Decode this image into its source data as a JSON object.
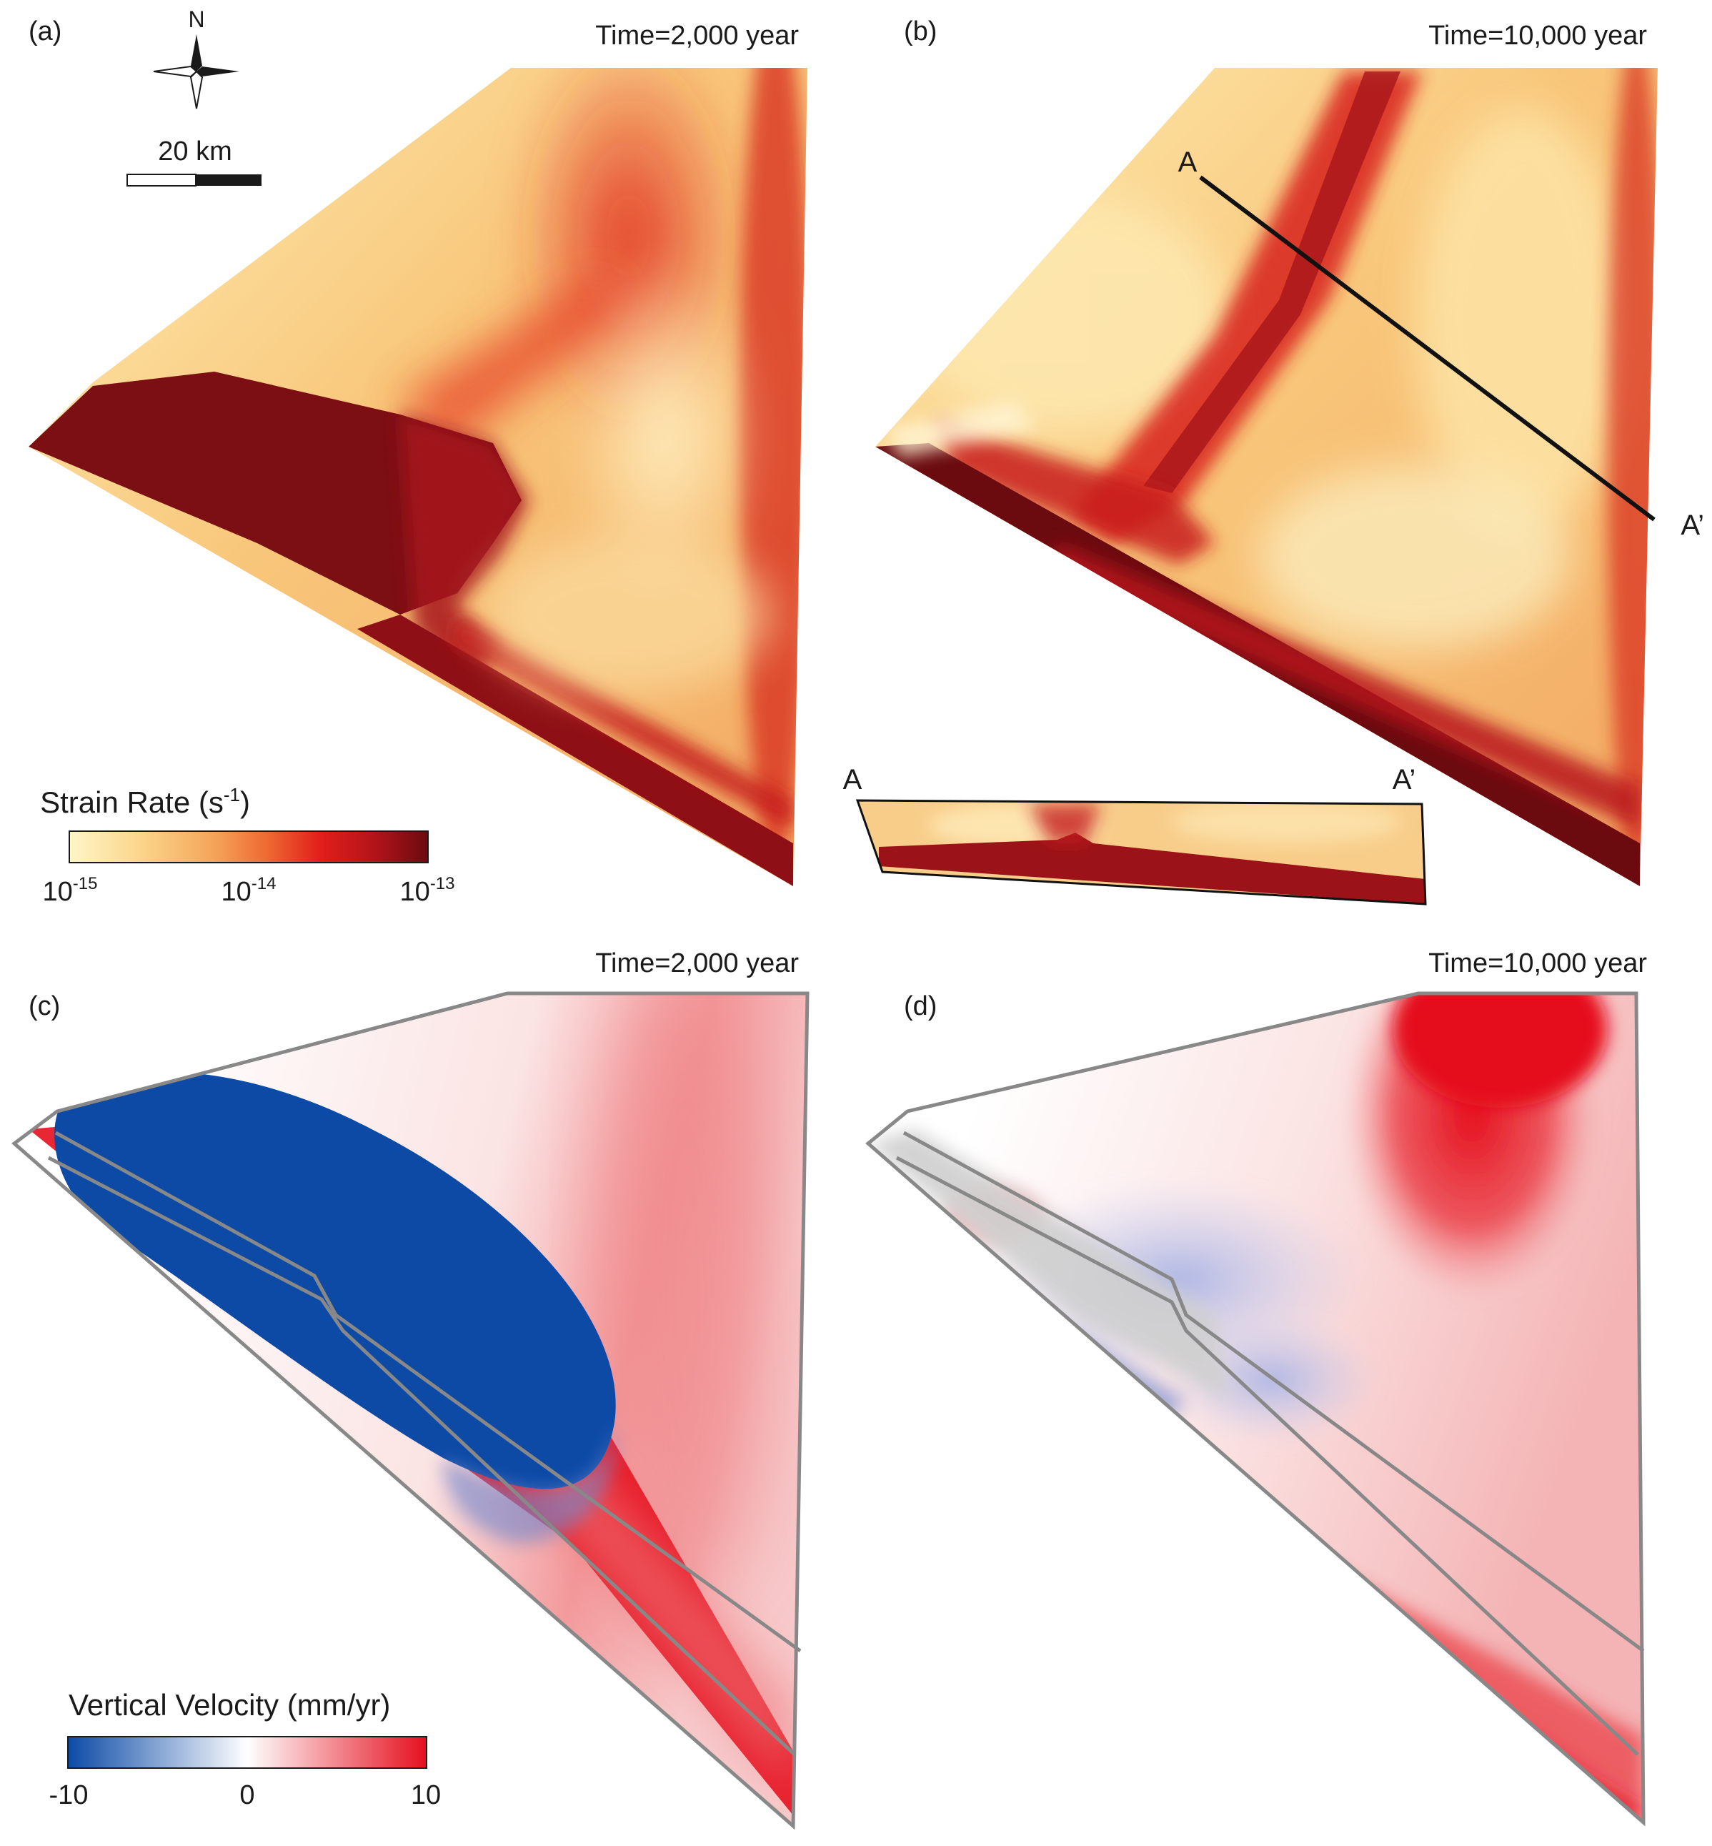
{
  "panels": {
    "a": {
      "label": "(a)",
      "time": "Time=2,000 year"
    },
    "b": {
      "label": "(b)",
      "time": "Time=10,000 year"
    },
    "c": {
      "label": "(c)",
      "time": "Time=2,000 year"
    },
    "d": {
      "label": "(d)",
      "time": "Time=10,000 year"
    }
  },
  "north_arrow": {
    "label": "N"
  },
  "scale_bar": {
    "label": "20 km"
  },
  "profile": {
    "start_label": "A",
    "end_label": "A’"
  },
  "strain_legend": {
    "title": "Strain Rate (s",
    "title_sup": "-1",
    "title_end": ")",
    "ticks": [
      {
        "base": "10",
        "exp": "-15"
      },
      {
        "base": "10",
        "exp": "-14"
      },
      {
        "base": "10",
        "exp": "-13"
      }
    ],
    "colors": [
      "#fff6c8",
      "#fbd58a",
      "#f5a55a",
      "#ee6a33",
      "#e21e1b",
      "#b3141a",
      "#6b0b10"
    ]
  },
  "velocity_legend": {
    "title": "Vertical Velocity (mm/yr)",
    "ticks": [
      "-10",
      "0",
      "10"
    ],
    "colors": [
      "#0c4aa6",
      "#ffffff",
      "#e50f1e"
    ]
  }
}
